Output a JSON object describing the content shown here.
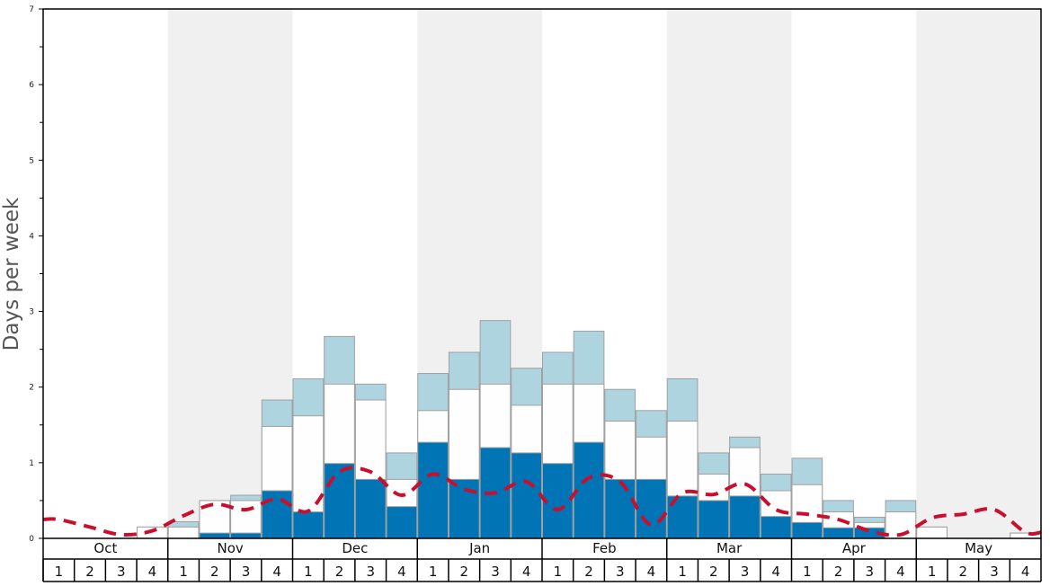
{
  "chart_data": {
    "type": "bar",
    "ylabel": "Days per week",
    "ylim": [
      0,
      7
    ],
    "y_ticks": [
      0,
      1,
      2,
      3,
      4,
      5,
      6,
      7
    ],
    "months": [
      "Oct",
      "Nov",
      "Dec",
      "Jan",
      "Feb",
      "Mar",
      "Apr",
      "May"
    ],
    "weeks": [
      "1",
      "2",
      "3",
      "4"
    ],
    "shaded_months": [
      "Nov",
      "Jan",
      "Mar",
      "May"
    ],
    "colors": {
      "band_shade": "#f0f0f0",
      "dark_fill": "#0074b5",
      "mid_fill": "#fefefe",
      "top_fill": "#aed4e0",
      "bar_stroke": "#a0a0a0",
      "dashed_line": "#c8102e",
      "axis": "#000000",
      "text": "#333333"
    },
    "series": [
      {
        "fill": "dark",
        "values": [
          0,
          0,
          0,
          0,
          0,
          0.07,
          0.07,
          0.63,
          0.35,
          0.99,
          0.78,
          0.42,
          1.27,
          0.78,
          1.2,
          1.13,
          0.99,
          1.27,
          0.78,
          0.78,
          0.56,
          0.5,
          0.56,
          0.29,
          0.21,
          0.14,
          0.14,
          0,
          0,
          0,
          0,
          0
        ]
      },
      {
        "fill": "mid",
        "values": [
          0,
          0,
          0,
          0.15,
          0.15,
          0.5,
          0.5,
          1.48,
          1.62,
          2.04,
          1.83,
          0.78,
          1.69,
          1.97,
          2.04,
          1.76,
          2.04,
          2.04,
          1.55,
          1.34,
          1.55,
          0.85,
          1.2,
          0.63,
          0.71,
          0.35,
          0.21,
          0.35,
          0.15,
          0,
          0,
          0.07
        ]
      },
      {
        "fill": "top",
        "values": [
          0,
          0,
          0,
          0.15,
          0.22,
          0.5,
          0.57,
          1.83,
          2.11,
          2.67,
          2.04,
          1.13,
          2.18,
          2.46,
          2.88,
          2.25,
          2.46,
          2.74,
          1.97,
          1.69,
          2.11,
          1.13,
          1.34,
          0.85,
          1.06,
          0.5,
          0.28,
          0.5,
          0.15,
          0,
          0,
          0.07
        ]
      },
      {
        "fill": "dashed-line",
        "values": [
          0.25,
          0.15,
          0.05,
          0.1,
          0.3,
          0.45,
          0.38,
          0.52,
          0.36,
          0.88,
          0.88,
          0.57,
          0.85,
          0.65,
          0.6,
          0.75,
          0.38,
          0.8,
          0.75,
          0.18,
          0.6,
          0.58,
          0.72,
          0.38,
          0.32,
          0.25,
          0.1,
          0.05,
          0.27,
          0.32,
          0.38,
          0.08
        ]
      }
    ]
  }
}
